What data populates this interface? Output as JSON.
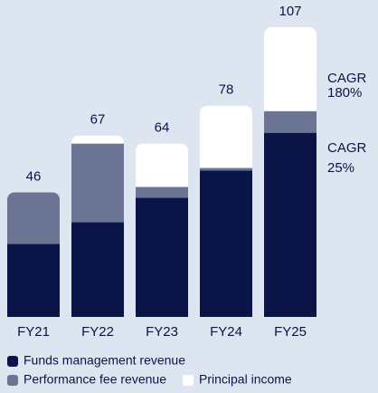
{
  "chart_data": {
    "type": "stacked_bar",
    "categories": [
      "FY21",
      "FY22",
      "FY23",
      "FY24",
      "FY25"
    ],
    "series": [
      {
        "name": "Funds management revenue",
        "color": "#0a1447",
        "values": [
          27,
          35,
          44,
          54,
          68
        ]
      },
      {
        "name": "Performance fee revenue",
        "color": "#6b7593",
        "values": [
          19,
          29,
          4,
          1,
          8
        ]
      },
      {
        "name": "Principal income",
        "color": "#ffffff",
        "values": [
          0,
          3,
          16,
          23,
          31
        ]
      }
    ],
    "totals": [
      46,
      67,
      64,
      78,
      107
    ],
    "annotations": [
      {
        "lines": [
          "CAGR",
          "180%"
        ]
      },
      {
        "lines": [
          "CAGR",
          "25%"
        ]
      }
    ],
    "ylim": [
      0,
      107
    ]
  }
}
